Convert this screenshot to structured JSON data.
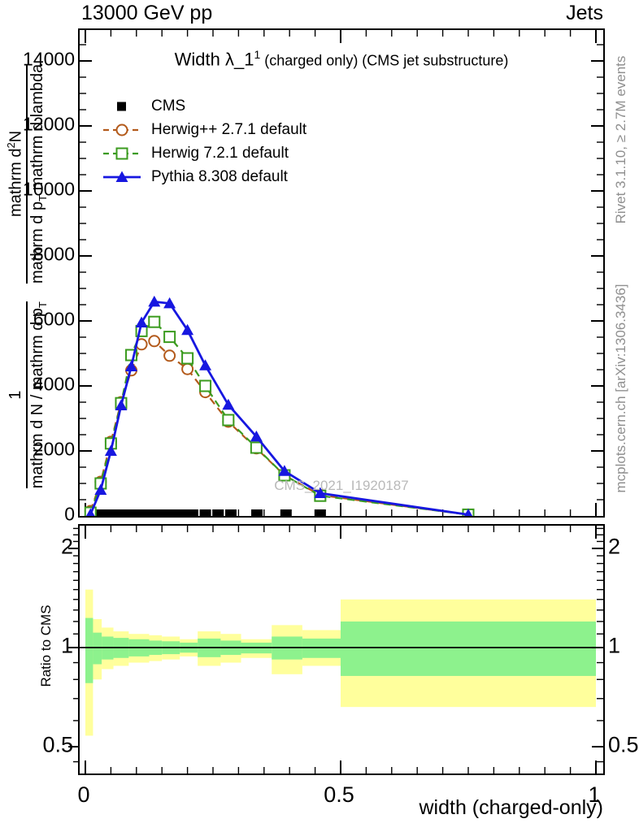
{
  "header": {
    "left": "13000 GeV pp",
    "right": "Jets"
  },
  "title": {
    "main": "Width λ_1",
    "sup": "1",
    "suffix": " (charged only) (CMS jet substructure)"
  },
  "watermark": "CMS_2021_I1920187",
  "side_notes": {
    "top_right": "Rivet 3.1.10, ≥ 2.7M events",
    "bottom_right": "mcplots.cern.ch [arXiv:1306.3436]"
  },
  "axis_labels": {
    "x": "width (charged-only)",
    "ratio_y": "Ratio to CMS",
    "y_frac1": {
      "num": "1",
      "den_main": "mathrm d N / mathrm d p",
      "den_sub": "T"
    },
    "y_frac2": {
      "num_main": "mathrm d",
      "num_sup": "2",
      "num_tail": "N",
      "den_main": "mathrm d p",
      "den_sub": "T",
      "den_tail": " mathrm d lambda"
    }
  },
  "colors": {
    "cms": "#000000",
    "herwigpp": "#b35a1b",
    "herwig7": "#3b9b1f",
    "pythia": "#1717e0",
    "band_yellow": "#ffff9c",
    "band_green": "#8df28d",
    "watermark": "#b9b9b9",
    "side_note": "#8f8f8f"
  },
  "legend": [
    {
      "label": "CMS",
      "color": "#000000",
      "marker": "square-filled",
      "line": "none"
    },
    {
      "label": "Herwig++ 2.7.1 default",
      "color": "#b35a1b",
      "marker": "circle-open",
      "line": "dashed"
    },
    {
      "label": "Herwig 7.2.1 default",
      "color": "#3b9b1f",
      "marker": "square-open",
      "line": "dashed"
    },
    {
      "label": "Pythia 8.308 default",
      "color": "#1717e0",
      "marker": "triangle-filled",
      "line": "solid"
    }
  ],
  "chart_data": [
    {
      "type": "line",
      "panel": "main",
      "title": "Width λ_1^1 (charged only) (CMS jet substructure)",
      "xlabel": "width (charged-only)",
      "ylabel": "1/(dN/dp_T) d^2N/(dp_T dlambda)",
      "xlim": [
        0,
        1
      ],
      "ylim": [
        0,
        14950
      ],
      "grid": false,
      "xticks": [
        {
          "v": 0,
          "label": "0"
        },
        {
          "v": 0.5,
          "label": "0.5"
        },
        {
          "v": 1,
          "label": "1"
        }
      ],
      "xminor_step": 0.05,
      "yticks": [
        {
          "v": 0,
          "label": "0"
        },
        {
          "v": 2000,
          "label": "2000"
        },
        {
          "v": 4000,
          "label": "4000"
        },
        {
          "v": 6000,
          "label": "6000"
        },
        {
          "v": 8000,
          "label": "8000"
        },
        {
          "v": 10000,
          "label": "10000"
        },
        {
          "v": 12000,
          "label": "12000"
        },
        {
          "v": 14000,
          "label": "14000"
        }
      ],
      "yminor_step": 500,
      "series": [
        {
          "name": "CMS",
          "color": "#000000",
          "line": "none",
          "marker": "square-filled",
          "x": [
            0.01,
            0.03,
            0.05,
            0.07,
            0.09,
            0.11,
            0.13,
            0.15,
            0.17,
            0.19,
            0.21,
            0.235,
            0.26,
            0.285,
            0.336,
            0.393,
            0.46
          ],
          "y": [
            60,
            60,
            60,
            60,
            60,
            60,
            60,
            60,
            60,
            60,
            60,
            60,
            60,
            60,
            60,
            60,
            60
          ]
        },
        {
          "name": "Herwig++ 2.7.1 default",
          "color": "#b35a1b",
          "line": "dashed",
          "marker": "circle-open",
          "x": [
            0.01,
            0.03,
            0.05,
            0.07,
            0.09,
            0.11,
            0.135,
            0.165,
            0.2,
            0.235,
            0.28,
            0.335,
            0.39,
            0.46,
            0.75
          ],
          "y": [
            150,
            1050,
            2280,
            3500,
            4480,
            5280,
            5380,
            4930,
            4520,
            3810,
            2900,
            2080,
            1250,
            640,
            40
          ]
        },
        {
          "name": "Herwig 7.2.1 default",
          "color": "#3b9b1f",
          "line": "dashed",
          "marker": "square-open",
          "x": [
            0.01,
            0.03,
            0.05,
            0.07,
            0.09,
            0.11,
            0.135,
            0.165,
            0.2,
            0.235,
            0.28,
            0.335,
            0.39,
            0.46,
            0.75
          ],
          "y": [
            100,
            1000,
            2230,
            3470,
            4950,
            5690,
            5970,
            5510,
            4850,
            4000,
            2950,
            2100,
            1250,
            620,
            40
          ]
        },
        {
          "name": "Pythia 8.308 default",
          "color": "#1717e0",
          "line": "solid",
          "marker": "triangle-filled",
          "x": [
            0.01,
            0.03,
            0.05,
            0.07,
            0.09,
            0.11,
            0.135,
            0.165,
            0.2,
            0.235,
            0.28,
            0.335,
            0.39,
            0.46,
            0.75
          ],
          "y": [
            50,
            800,
            2000,
            3400,
            4600,
            5950,
            6590,
            6540,
            5720,
            4630,
            3420,
            2440,
            1380,
            700,
            40
          ]
        }
      ]
    },
    {
      "type": "ratio-bands",
      "panel": "ratio",
      "ylabel": "Ratio to CMS",
      "yscale": "log",
      "xlim": [
        0,
        1
      ],
      "ylim": [
        0.414,
        2.345
      ],
      "yticks": [
        {
          "v": 0.5,
          "label": "0.5"
        },
        {
          "v": 1,
          "label": "1"
        },
        {
          "v": 2,
          "label": "2"
        }
      ],
      "yminors": [
        0.45,
        0.6,
        0.7,
        0.8,
        0.9,
        1.1,
        1.2,
        1.3,
        1.4,
        1.5,
        1.6,
        1.7,
        1.8,
        1.9,
        2.1,
        2.2,
        2.3
      ],
      "xticks": [
        {
          "v": 0,
          "label": "0"
        },
        {
          "v": 0.5,
          "label": "0.5"
        },
        {
          "v": 1,
          "label": "1"
        }
      ],
      "xminor_step": 0.05,
      "reference_line": 1,
      "bands": [
        {
          "xlo": 0.0,
          "xhi": 0.015,
          "yellow": [
            0.54,
            1.5
          ],
          "green": [
            0.78,
            1.23
          ]
        },
        {
          "xlo": 0.015,
          "xhi": 0.032,
          "yellow": [
            0.8,
            1.22
          ],
          "green": [
            0.89,
            1.11
          ]
        },
        {
          "xlo": 0.032,
          "xhi": 0.055,
          "yellow": [
            0.86,
            1.15
          ],
          "green": [
            0.92,
            1.08
          ]
        },
        {
          "xlo": 0.055,
          "xhi": 0.085,
          "yellow": [
            0.88,
            1.12
          ],
          "green": [
            0.93,
            1.07
          ]
        },
        {
          "xlo": 0.085,
          "xhi": 0.125,
          "yellow": [
            0.9,
            1.1
          ],
          "green": [
            0.94,
            1.06
          ]
        },
        {
          "xlo": 0.125,
          "xhi": 0.15,
          "yellow": [
            0.91,
            1.09
          ],
          "green": [
            0.95,
            1.05
          ]
        },
        {
          "xlo": 0.15,
          "xhi": 0.185,
          "yellow": [
            0.92,
            1.08
          ],
          "green": [
            0.955,
            1.045
          ]
        },
        {
          "xlo": 0.185,
          "xhi": 0.22,
          "yellow": [
            0.94,
            1.06
          ],
          "green": [
            0.965,
            1.035
          ]
        },
        {
          "xlo": 0.22,
          "xhi": 0.265,
          "yellow": [
            0.88,
            1.12
          ],
          "green": [
            0.935,
            1.065
          ]
        },
        {
          "xlo": 0.265,
          "xhi": 0.305,
          "yellow": [
            0.9,
            1.1
          ],
          "green": [
            0.95,
            1.05
          ]
        },
        {
          "xlo": 0.305,
          "xhi": 0.365,
          "yellow": [
            0.93,
            1.06
          ],
          "green": [
            0.96,
            1.035
          ]
        },
        {
          "xlo": 0.365,
          "xhi": 0.425,
          "yellow": [
            0.83,
            1.17
          ],
          "green": [
            0.92,
            1.08
          ]
        },
        {
          "xlo": 0.425,
          "xhi": 0.5,
          "yellow": [
            0.88,
            1.13
          ],
          "green": [
            0.93,
            1.065
          ]
        },
        {
          "xlo": 0.5,
          "xhi": 1.0,
          "yellow": [
            0.66,
            1.4
          ],
          "green": [
            0.82,
            1.2
          ]
        }
      ]
    }
  ]
}
